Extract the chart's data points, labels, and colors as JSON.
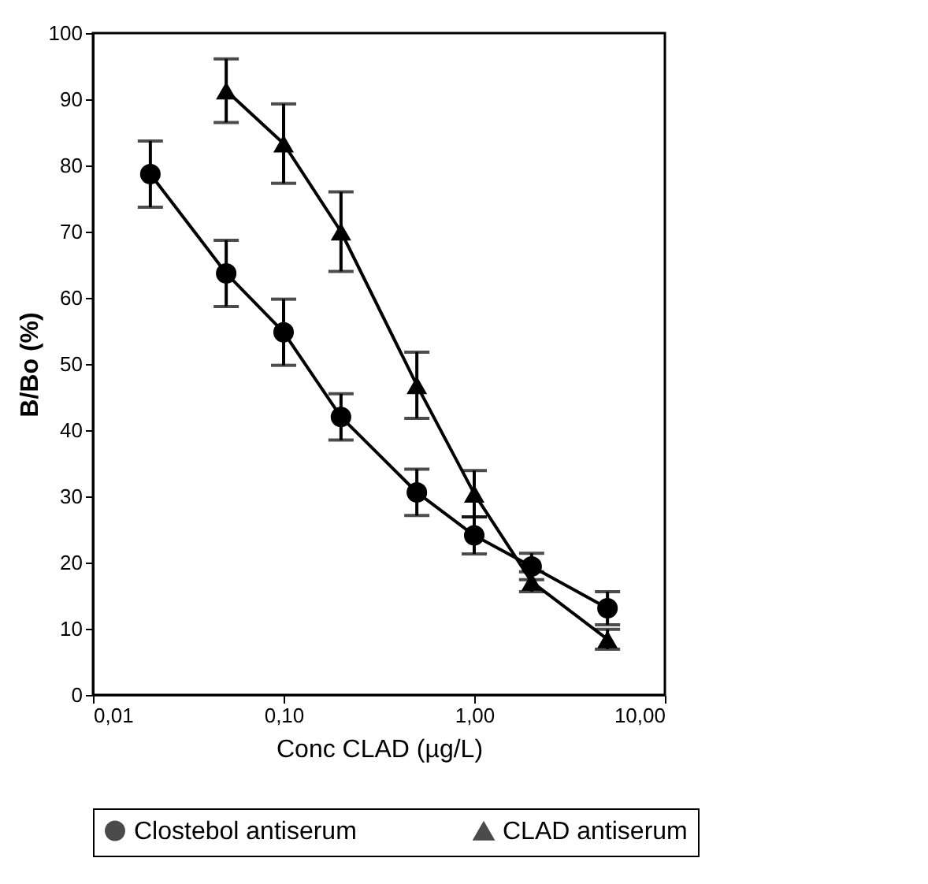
{
  "chart_data": {
    "type": "line",
    "xlabel": "Conc CLAD (µg/L)",
    "ylabel": "B/Bo (%)",
    "x": [
      0.02,
      0.05,
      0.1,
      0.2,
      0.5,
      1,
      2,
      5
    ],
    "series": [
      {
        "name": "Clostebol antiserum",
        "color": "#000000",
        "marker": "circle",
        "values": [
          78.7,
          63.7,
          54.8,
          42,
          30.6,
          24.1,
          19.4,
          13.1
        ],
        "errors": [
          5,
          5,
          5,
          3.5,
          3.5,
          2.8,
          2,
          2.5
        ]
      },
      {
        "name": "CLAD antiserum",
        "color": "#000000",
        "marker": "triangle",
        "x": [
          0.05,
          0.1,
          0.2,
          0.5,
          1,
          2,
          5
        ],
        "values": [
          91.3,
          83.3,
          70,
          46.8,
          30.4,
          17.1,
          8.4
        ],
        "errors": [
          4.8,
          6,
          6,
          5,
          3.5,
          1.5,
          1.5
        ]
      }
    ],
    "log": "x",
    "xlim": [
      0.01,
      10
    ],
    "xticks": [
      {
        "value": 0.01,
        "label": "0,01"
      },
      {
        "value": 0.1,
        "label": "0,10"
      },
      {
        "value": 1,
        "label": "1,00"
      },
      {
        "value": 10,
        "label": "10,00"
      }
    ],
    "ylim": [
      0,
      100
    ],
    "yticks": [
      0,
      10,
      20,
      30,
      40,
      50,
      60,
      70,
      80,
      90,
      100
    ],
    "grid": false,
    "legend": "bottom",
    "line_style": "solid"
  }
}
